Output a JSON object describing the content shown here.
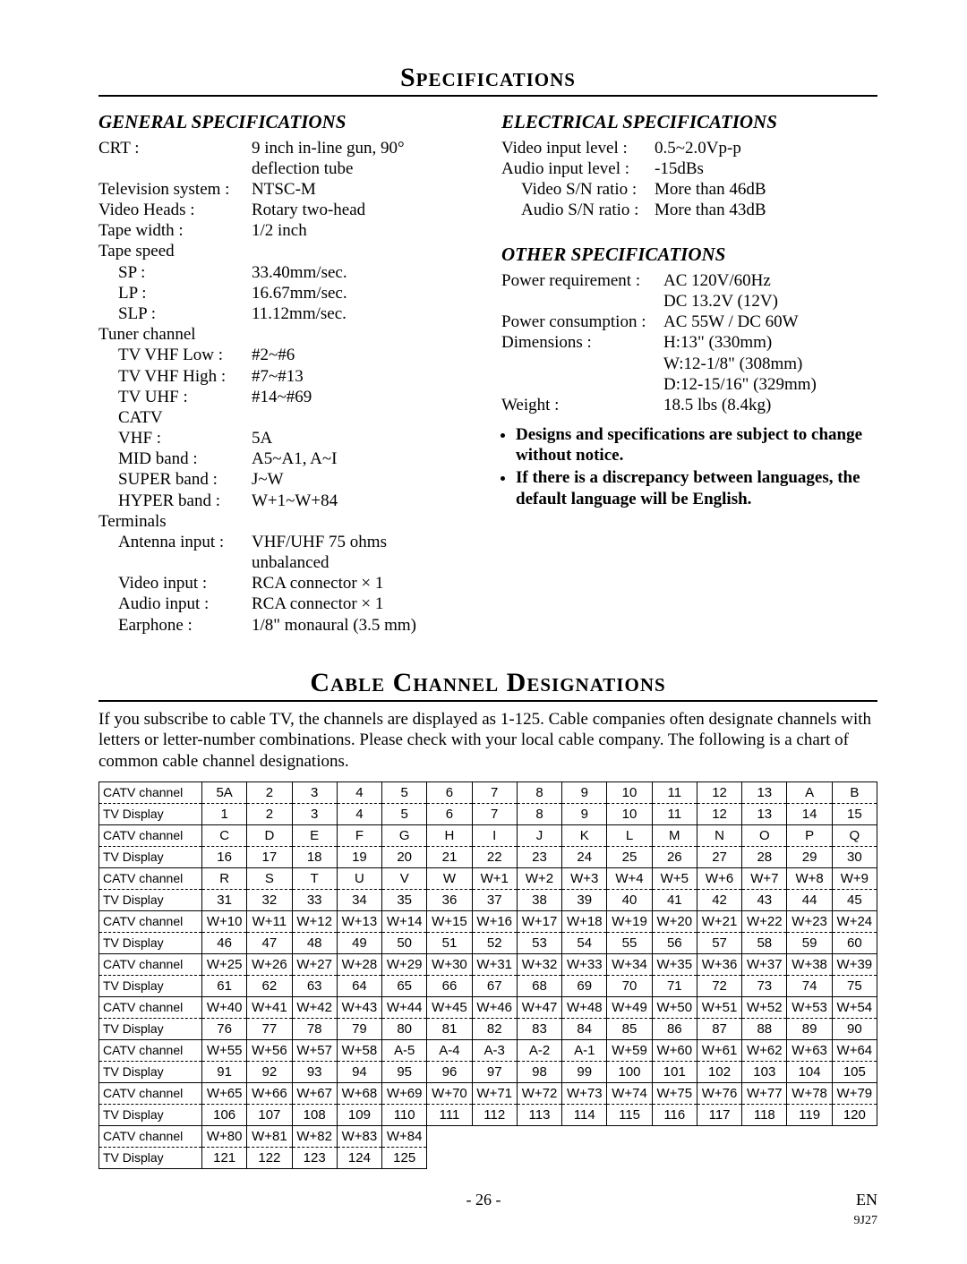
{
  "title_specs": "Specifications",
  "title_cable": "Cable Channel Designations",
  "headings": {
    "general": "GENERAL SPECIFICATIONS",
    "electrical": "ELECTRICAL SPECIFICATIONS",
    "other": "OTHER SPECIFICATIONS"
  },
  "general": {
    "crt": {
      "label": "CRT :",
      "val1": "9 inch in-line gun, 90°",
      "val2": "deflection tube"
    },
    "tv_system": {
      "label": "Television system :",
      "val": "NTSC-M"
    },
    "video_heads": {
      "label": "Video Heads :",
      "val": "Rotary two-head"
    },
    "tape_width": {
      "label": "Tape width :",
      "val": "1/2 inch"
    },
    "tape_speed_label": "Tape speed",
    "tape_speed": {
      "sp": {
        "label": "SP :",
        "val": "33.40mm/sec."
      },
      "lp": {
        "label": "LP :",
        "val": "16.67mm/sec."
      },
      "slp": {
        "label": "SLP :",
        "val": "11.12mm/sec."
      }
    },
    "tuner_label": "Tuner channel",
    "tuner": {
      "vhf_low": {
        "label": "TV VHF Low :",
        "val": "#2~#6"
      },
      "vhf_high": {
        "label": "TV VHF High :",
        "val": "#7~#13"
      },
      "uhf": {
        "label": "TV UHF :",
        "val": "#14~#69"
      },
      "catv_label": "CATV",
      "vhf": {
        "label": "VHF :",
        "val": "5A"
      },
      "mid": {
        "label": "MID band :",
        "val": "A5~A1, A~I"
      },
      "super": {
        "label": "SUPER band :",
        "val": "J~W"
      },
      "hyper": {
        "label": "HYPER band :",
        "val": "W+1~W+84"
      }
    },
    "terminals_label": "Terminals",
    "terminals": {
      "antenna": {
        "label": "Antenna input :",
        "val1": "VHF/UHF 75 ohms",
        "val2": "unbalanced"
      },
      "video": {
        "label": "Video input :",
        "val": "RCA connector × 1"
      },
      "audio": {
        "label": "Audio input :",
        "val": "RCA connector × 1"
      },
      "earphone": {
        "label": "Earphone :",
        "val": "1/8\" monaural (3.5 mm)"
      }
    }
  },
  "electrical": {
    "video_in": {
      "label": "Video input level :",
      "val": "0.5~2.0Vp-p"
    },
    "audio_in": {
      "label": "Audio input level :",
      "val": "-15dBs"
    },
    "video_sn": {
      "label": "Video S/N ratio :",
      "val": "More than 46dB"
    },
    "audio_sn": {
      "label": "Audio S/N ratio :",
      "val": "More than 43dB"
    }
  },
  "other": {
    "power_req": {
      "label": "Power requirement :",
      "val1": "AC 120V/60Hz",
      "val2": "DC 13.2V (12V)"
    },
    "power_cons": {
      "label": "Power consumption :",
      "val": "AC 55W / DC 60W"
    },
    "dimensions": {
      "label": "Dimensions :",
      "val1": "H:13\" (330mm)",
      "val2": "W:12-1/8\" (308mm)",
      "val3": "D:12-15/16\" (329mm)"
    },
    "weight": {
      "label": "Weight :",
      "val": "18.5 lbs (8.4kg)"
    }
  },
  "notes": {
    "n1": "Designs and specifications are subject to change without notice.",
    "n2": "If there is a discrepancy between languages, the default language will be English."
  },
  "cable_intro": "If you subscribe to cable TV, the channels are displayed as 1-125. Cable companies often designate channels with letters or letter-number combinations. Please check with your local cable company. The following is a chart of common cable channel designations.",
  "row_labels": {
    "catv": "CATV channel",
    "tv": "TV Display"
  },
  "cable_pairs": [
    {
      "catv": [
        "5A",
        "2",
        "3",
        "4",
        "5",
        "6",
        "7",
        "8",
        "9",
        "10",
        "11",
        "12",
        "13",
        "A",
        "B"
      ],
      "tv": [
        "1",
        "2",
        "3",
        "4",
        "5",
        "6",
        "7",
        "8",
        "9",
        "10",
        "11",
        "12",
        "13",
        "14",
        "15"
      ]
    },
    {
      "catv": [
        "C",
        "D",
        "E",
        "F",
        "G",
        "H",
        "I",
        "J",
        "K",
        "L",
        "M",
        "N",
        "O",
        "P",
        "Q"
      ],
      "tv": [
        "16",
        "17",
        "18",
        "19",
        "20",
        "21",
        "22",
        "23",
        "24",
        "25",
        "26",
        "27",
        "28",
        "29",
        "30"
      ]
    },
    {
      "catv": [
        "R",
        "S",
        "T",
        "U",
        "V",
        "W",
        "W+1",
        "W+2",
        "W+3",
        "W+4",
        "W+5",
        "W+6",
        "W+7",
        "W+8",
        "W+9"
      ],
      "tv": [
        "31",
        "32",
        "33",
        "34",
        "35",
        "36",
        "37",
        "38",
        "39",
        "40",
        "41",
        "42",
        "43",
        "44",
        "45"
      ]
    },
    {
      "catv": [
        "W+10",
        "W+11",
        "W+12",
        "W+13",
        "W+14",
        "W+15",
        "W+16",
        "W+17",
        "W+18",
        "W+19",
        "W+20",
        "W+21",
        "W+22",
        "W+23",
        "W+24"
      ],
      "tv": [
        "46",
        "47",
        "48",
        "49",
        "50",
        "51",
        "52",
        "53",
        "54",
        "55",
        "56",
        "57",
        "58",
        "59",
        "60"
      ]
    },
    {
      "catv": [
        "W+25",
        "W+26",
        "W+27",
        "W+28",
        "W+29",
        "W+30",
        "W+31",
        "W+32",
        "W+33",
        "W+34",
        "W+35",
        "W+36",
        "W+37",
        "W+38",
        "W+39"
      ],
      "tv": [
        "61",
        "62",
        "63",
        "64",
        "65",
        "66",
        "67",
        "68",
        "69",
        "70",
        "71",
        "72",
        "73",
        "74",
        "75"
      ]
    },
    {
      "catv": [
        "W+40",
        "W+41",
        "W+42",
        "W+43",
        "W+44",
        "W+45",
        "W+46",
        "W+47",
        "W+48",
        "W+49",
        "W+50",
        "W+51",
        "W+52",
        "W+53",
        "W+54"
      ],
      "tv": [
        "76",
        "77",
        "78",
        "79",
        "80",
        "81",
        "82",
        "83",
        "84",
        "85",
        "86",
        "87",
        "88",
        "89",
        "90"
      ]
    },
    {
      "catv": [
        "W+55",
        "W+56",
        "W+57",
        "W+58",
        "A-5",
        "A-4",
        "A-3",
        "A-2",
        "A-1",
        "W+59",
        "W+60",
        "W+61",
        "W+62",
        "W+63",
        "W+64"
      ],
      "tv": [
        "91",
        "92",
        "93",
        "94",
        "95",
        "96",
        "97",
        "98",
        "99",
        "100",
        "101",
        "102",
        "103",
        "104",
        "105"
      ]
    },
    {
      "catv": [
        "W+65",
        "W+66",
        "W+67",
        "W+68",
        "W+69",
        "W+70",
        "W+71",
        "W+72",
        "W+73",
        "W+74",
        "W+75",
        "W+76",
        "W+77",
        "W+78",
        "W+79"
      ],
      "tv": [
        "106",
        "107",
        "108",
        "109",
        "110",
        "111",
        "112",
        "113",
        "114",
        "115",
        "116",
        "117",
        "118",
        "119",
        "120"
      ]
    },
    {
      "catv": [
        "W+80",
        "W+81",
        "W+82",
        "W+83",
        "W+84"
      ],
      "tv": [
        "121",
        "122",
        "123",
        "124",
        "125"
      ]
    }
  ],
  "footer": {
    "page": "- 26 -",
    "lang": "EN",
    "code": "9J27"
  }
}
